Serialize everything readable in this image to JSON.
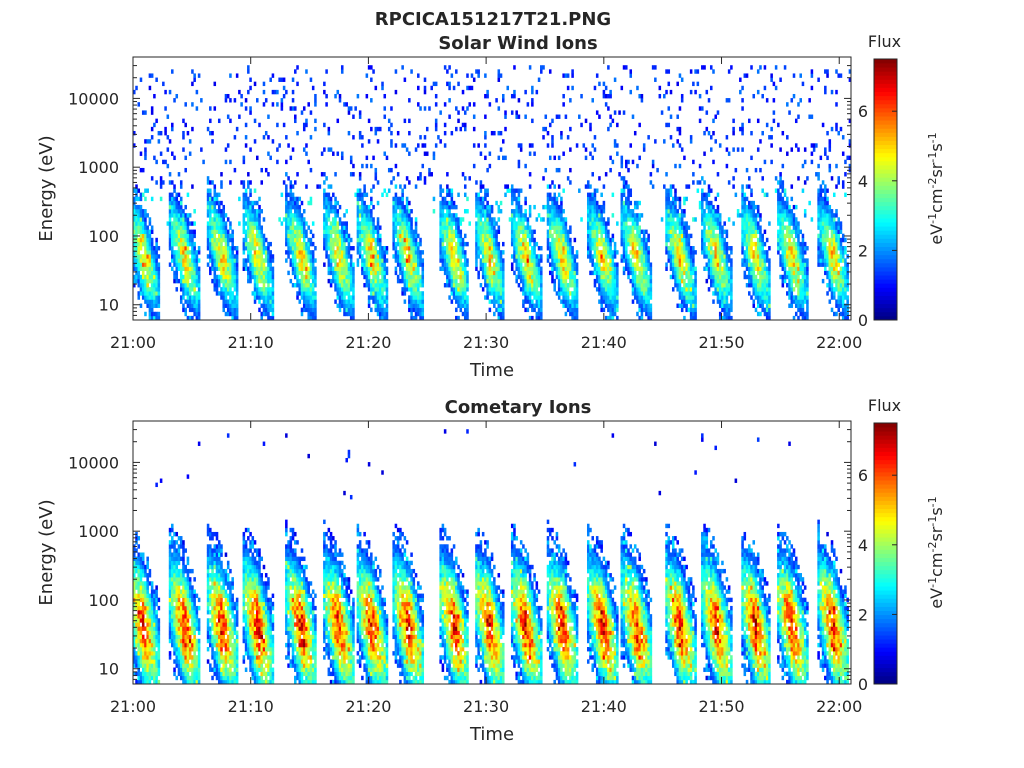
{
  "figure": {
    "title": "RPCICA151217T21.PNG"
  },
  "chart_data": [
    {
      "type": "heatmap",
      "title": "Solar Wind Ions",
      "xlabel": "Time",
      "ylabel": "Energy (eV)",
      "x_ticks": [
        "21:00",
        "21:10",
        "21:20",
        "21:30",
        "21:40",
        "21:50",
        "22:00"
      ],
      "x_range": [
        "21:00",
        "22:01"
      ],
      "y_scale": "log",
      "y_ticks": [
        10,
        100,
        1000,
        10000
      ],
      "y_tick_labels": [
        "10",
        "100",
        "1000",
        "10000"
      ],
      "y_range": [
        6,
        40000
      ],
      "colorbar": {
        "title": "Flux",
        "label": "eV-1cm-2sr-1s-1",
        "range": [
          0,
          7.5
        ],
        "ticks": [
          0,
          2,
          4,
          6
        ],
        "colormap": "jet"
      },
      "pulse_times_min": [
        0.8,
        4.3,
        7.5,
        10.5,
        14.2,
        17.4,
        20.2,
        23.3,
        27.2,
        30.2,
        33.3,
        36.4,
        39.8,
        42.7,
        46.4,
        49.5,
        52.8,
        55.9,
        59.4
      ],
      "pulse_peak_energy_eV": 50,
      "pulse_peak_flux": 5.5,
      "background_energy_range_eV": [
        500,
        30000
      ],
      "background_flux": 1.3
    },
    {
      "type": "heatmap",
      "title": "Cometary Ions",
      "xlabel": "Time",
      "ylabel": "Energy (eV)",
      "x_ticks": [
        "21:00",
        "21:10",
        "21:20",
        "21:30",
        "21:40",
        "21:50",
        "22:00"
      ],
      "x_range": [
        "21:00",
        "22:01"
      ],
      "y_scale": "log",
      "y_ticks": [
        10,
        100,
        1000,
        10000
      ],
      "y_tick_labels": [
        "10",
        "100",
        "1000",
        "10000"
      ],
      "y_range": [
        6,
        40000
      ],
      "colorbar": {
        "title": "Flux",
        "label": "eV-1cm-2sr-1s-1",
        "range": [
          0,
          7.5
        ],
        "ticks": [
          0,
          2,
          4,
          6
        ],
        "colormap": "jet"
      },
      "pulse_times_min": [
        0.8,
        4.3,
        7.5,
        10.5,
        14.2,
        17.4,
        20.2,
        23.3,
        27.2,
        30.2,
        33.3,
        36.4,
        39.8,
        42.7,
        46.4,
        49.5,
        52.8,
        55.9,
        59.4
      ],
      "pulse_peak_energy_eV": 40,
      "pulse_peak_flux": 7,
      "background_energy_range_eV": [
        3000,
        30000
      ],
      "background_flux": 1.0
    }
  ]
}
